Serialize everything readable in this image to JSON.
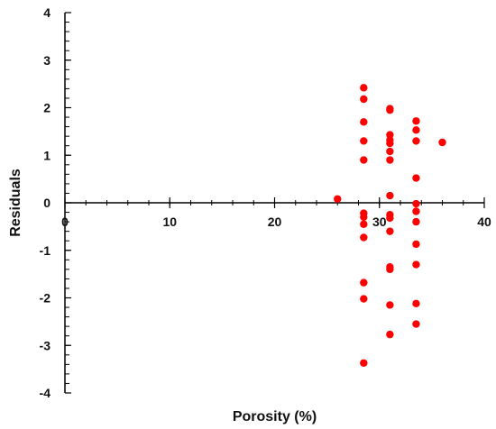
{
  "chart_data": {
    "type": "scatter",
    "title": "",
    "xlabel": "Porosity (%)",
    "ylabel": "Residuals",
    "xlim": [
      0,
      40
    ],
    "ylim": [
      -4,
      4
    ],
    "x_ticks": [
      0,
      10,
      20,
      30,
      40
    ],
    "y_ticks": [
      -4,
      -3,
      -2,
      -1,
      0,
      1,
      2,
      3,
      4
    ],
    "x_tick_labels": [
      "0",
      "10",
      "20",
      "30",
      "40"
    ],
    "y_tick_labels": [
      "-4",
      "-3",
      "-2",
      "-1",
      "0",
      "1",
      "2",
      "3",
      "4"
    ],
    "grid": false,
    "legend": "none",
    "marker_color": "#ff0000",
    "axis_color": "#000000",
    "series": [
      {
        "points": [
          {
            "x": 26.0,
            "y": 0.08
          },
          {
            "x": 28.5,
            "y": 2.42
          },
          {
            "x": 28.5,
            "y": 2.18
          },
          {
            "x": 28.5,
            "y": 1.7
          },
          {
            "x": 28.5,
            "y": 1.3
          },
          {
            "x": 28.5,
            "y": 0.9
          },
          {
            "x": 28.5,
            "y": -0.22
          },
          {
            "x": 28.5,
            "y": -0.3
          },
          {
            "x": 28.5,
            "y": -0.45
          },
          {
            "x": 28.5,
            "y": -0.73
          },
          {
            "x": 28.5,
            "y": -1.68
          },
          {
            "x": 28.5,
            "y": -2.02
          },
          {
            "x": 28.5,
            "y": -3.37
          },
          {
            "x": 31.0,
            "y": 1.98
          },
          {
            "x": 31.0,
            "y": 1.95
          },
          {
            "x": 31.0,
            "y": 1.43
          },
          {
            "x": 31.0,
            "y": 1.32
          },
          {
            "x": 31.0,
            "y": 1.25
          },
          {
            "x": 31.0,
            "y": 1.08
          },
          {
            "x": 31.0,
            "y": 0.9
          },
          {
            "x": 31.0,
            "y": 0.15
          },
          {
            "x": 31.0,
            "y": -0.25
          },
          {
            "x": 31.0,
            "y": -0.32
          },
          {
            "x": 31.0,
            "y": -0.6
          },
          {
            "x": 31.0,
            "y": -1.35
          },
          {
            "x": 31.0,
            "y": -1.4
          },
          {
            "x": 31.0,
            "y": -2.15
          },
          {
            "x": 31.0,
            "y": -2.77
          },
          {
            "x": 33.5,
            "y": 1.72
          },
          {
            "x": 33.5,
            "y": 1.53
          },
          {
            "x": 33.5,
            "y": 1.3
          },
          {
            "x": 33.5,
            "y": 0.52
          },
          {
            "x": 33.5,
            "y": -0.02
          },
          {
            "x": 33.5,
            "y": -0.18
          },
          {
            "x": 33.5,
            "y": -0.4
          },
          {
            "x": 33.5,
            "y": -0.87
          },
          {
            "x": 33.5,
            "y": -1.3
          },
          {
            "x": 33.5,
            "y": -2.12
          },
          {
            "x": 33.5,
            "y": -2.55
          },
          {
            "x": 36.0,
            "y": 1.27
          }
        ]
      }
    ]
  }
}
